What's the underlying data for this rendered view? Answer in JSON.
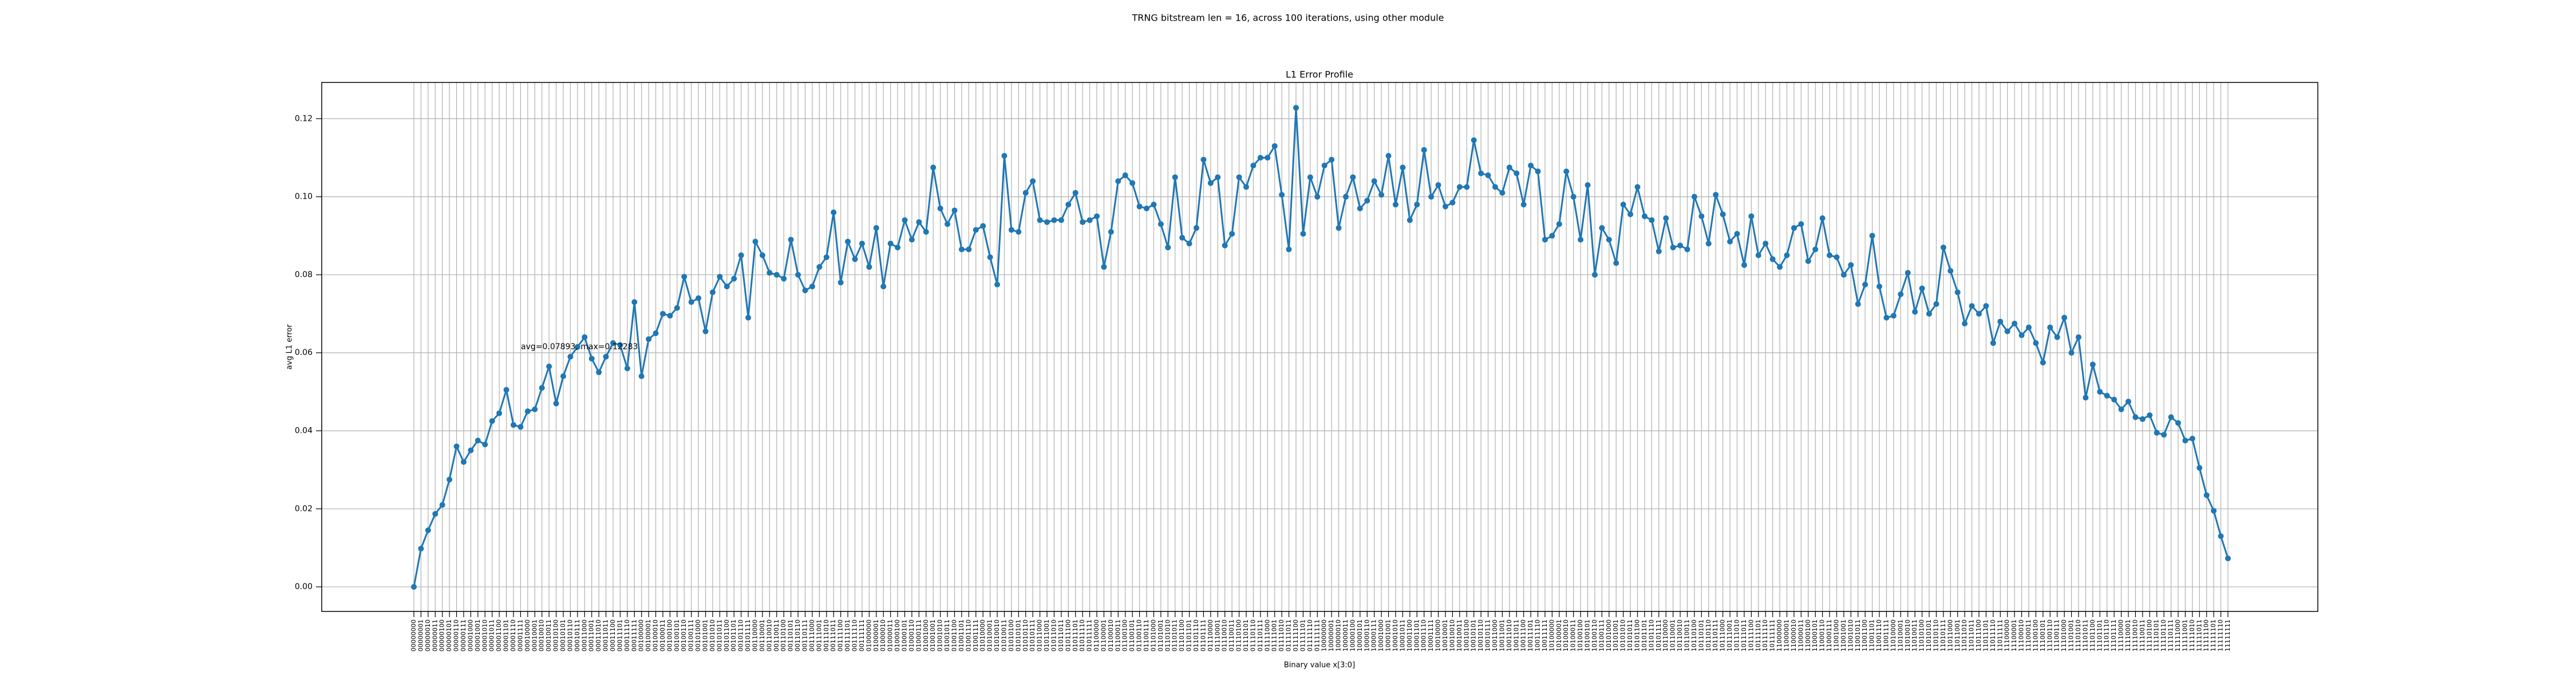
{
  "chart_data": {
    "type": "line",
    "title": "TRNG bitstream len = 16, across 100 iterations, using other module",
    "subtitle": "L1 Error Profile",
    "xlabel": "Binary value x[3:0]",
    "ylabel": "avg L1 error",
    "annotation": "avg=0.07893, max=0.12283",
    "color": "#1f77b4",
    "grid": true,
    "ylim": [
      -0.0063,
      0.1293
    ],
    "yticks": [
      {
        "value": 0,
        "label": "0.00"
      },
      {
        "value": 0.02,
        "label": "0.02"
      },
      {
        "value": 0.04,
        "label": "0.04"
      },
      {
        "value": 0.06,
        "label": "0.06"
      },
      {
        "value": 0.08,
        "label": "0.08"
      },
      {
        "value": 0.1,
        "label": "0.10"
      },
      {
        "value": 0.12,
        "label": "0.12"
      }
    ],
    "categories": [
      "00000000",
      "00000001",
      "00000010",
      "00000011",
      "00000100",
      "00000101",
      "00000110",
      "00000111",
      "00001000",
      "00001001",
      "00001010",
      "00001011",
      "00001100",
      "00001101",
      "00001110",
      "00001111",
      "00010000",
      "00010001",
      "00010010",
      "00010011",
      "00010100",
      "00010101",
      "00010110",
      "00010111",
      "00011000",
      "00011001",
      "00011010",
      "00011011",
      "00011100",
      "00011101",
      "00011110",
      "00011111",
      "00100000",
      "00100001",
      "00100010",
      "00100011",
      "00100100",
      "00100101",
      "00100110",
      "00100111",
      "00101000",
      "00101001",
      "00101010",
      "00101011",
      "00101100",
      "00101101",
      "00101110",
      "00101111",
      "00110000",
      "00110001",
      "00110010",
      "00110011",
      "00110100",
      "00110101",
      "00110110",
      "00110111",
      "00111000",
      "00111001",
      "00111010",
      "00111011",
      "00111100",
      "00111101",
      "00111110",
      "00111111",
      "01000000",
      "01000001",
      "01000010",
      "01000011",
      "01000100",
      "01000101",
      "01000110",
      "01000111",
      "01001000",
      "01001001",
      "01001010",
      "01001011",
      "01001100",
      "01001101",
      "01001110",
      "01001111",
      "01010000",
      "01010001",
      "01010010",
      "01010011",
      "01010100",
      "01010101",
      "01010110",
      "01010111",
      "01011000",
      "01011001",
      "01011010",
      "01011011",
      "01011100",
      "01011101",
      "01011110",
      "01011111",
      "01100000",
      "01100001",
      "01100010",
      "01100011",
      "01100100",
      "01100101",
      "01100110",
      "01100111",
      "01101000",
      "01101001",
      "01101010",
      "01101011",
      "01101100",
      "01101101",
      "01101110",
      "01101111",
      "01110000",
      "01110001",
      "01110010",
      "01110011",
      "01110100",
      "01110101",
      "01110110",
      "01110111",
      "01111000",
      "01111001",
      "01111010",
      "01111011",
      "01111100",
      "01111101",
      "01111110",
      "01111111",
      "10000000",
      "10000001",
      "10000010",
      "10000011",
      "10000100",
      "10000101",
      "10000110",
      "10000111",
      "10001000",
      "10001001",
      "10001010",
      "10001011",
      "10001100",
      "10001101",
      "10001110",
      "10001111",
      "10010000",
      "10010001",
      "10010010",
      "10010011",
      "10010100",
      "10010101",
      "10010110",
      "10010111",
      "10011000",
      "10011001",
      "10011010",
      "10011011",
      "10011100",
      "10011101",
      "10011110",
      "10011111",
      "10100000",
      "10100001",
      "10100010",
      "10100011",
      "10100100",
      "10100101",
      "10100110",
      "10100111",
      "10101000",
      "10101001",
      "10101010",
      "10101011",
      "10101100",
      "10101101",
      "10101110",
      "10101111",
      "10110000",
      "10110001",
      "10110010",
      "10110011",
      "10110100",
      "10110101",
      "10110110",
      "10110111",
      "10111000",
      "10111001",
      "10111010",
      "10111011",
      "10111100",
      "10111101",
      "10111110",
      "10111111",
      "11000000",
      "11000001",
      "11000010",
      "11000011",
      "11000100",
      "11000101",
      "11000110",
      "11000111",
      "11001000",
      "11001001",
      "11001010",
      "11001011",
      "11001100",
      "11001101",
      "11001110",
      "11001111",
      "11010000",
      "11010001",
      "11010010",
      "11010011",
      "11010100",
      "11010101",
      "11010110",
      "11010111",
      "11011000",
      "11011001",
      "11011010",
      "11011011",
      "11011100",
      "11011101",
      "11011110",
      "11011111",
      "11100000",
      "11100001",
      "11100010",
      "11100011",
      "11100100",
      "11100101",
      "11100110",
      "11100111",
      "11101000",
      "11101001",
      "11101010",
      "11101011",
      "11101100",
      "11101101",
      "11101110",
      "11101111",
      "11110000",
      "11110001",
      "11110010",
      "11110011",
      "11110100",
      "11110101",
      "11110110",
      "11110111",
      "11111000",
      "11111001",
      "11111010",
      "11111011",
      "11111100",
      "11111101",
      "11111110",
      "11111111"
    ],
    "values": [
      0.0,
      0.0098,
      0.0145,
      0.0187,
      0.021,
      0.0275,
      0.036,
      0.032,
      0.035,
      0.0375,
      0.0365,
      0.0425,
      0.0445,
      0.0505,
      0.0415,
      0.041,
      0.045,
      0.0455,
      0.051,
      0.0565,
      0.047,
      0.054,
      0.059,
      0.0615,
      0.064,
      0.0585,
      0.055,
      0.059,
      0.0625,
      0.062,
      0.056,
      0.073,
      0.054,
      0.0635,
      0.065,
      0.07,
      0.0695,
      0.0715,
      0.0795,
      0.073,
      0.074,
      0.0655,
      0.0755,
      0.0795,
      0.077,
      0.079,
      0.085,
      0.069,
      0.0885,
      0.085,
      0.0805,
      0.08,
      0.079,
      0.089,
      0.08,
      0.076,
      0.077,
      0.082,
      0.0845,
      0.096,
      0.078,
      0.0885,
      0.084,
      0.088,
      0.082,
      0.092,
      0.077,
      0.088,
      0.087,
      0.094,
      0.089,
      0.0935,
      0.091,
      0.1075,
      0.097,
      0.093,
      0.0965,
      0.0865,
      0.0865,
      0.0915,
      0.0925,
      0.0845,
      0.0775,
      0.1105,
      0.0915,
      0.091,
      0.101,
      0.104,
      0.094,
      0.0935,
      0.094,
      0.094,
      0.098,
      0.101,
      0.0935,
      0.094,
      0.095,
      0.082,
      0.091,
      0.104,
      0.1055,
      0.1035,
      0.0975,
      0.097,
      0.098,
      0.093,
      0.087,
      0.105,
      0.0895,
      0.088,
      0.092,
      0.1095,
      0.1035,
      0.105,
      0.0875,
      0.0905,
      0.105,
      0.1025,
      0.108,
      0.11,
      0.11,
      0.113,
      0.1005,
      0.0865,
      0.1228,
      0.0905,
      0.105,
      0.1,
      0.108,
      0.1095,
      0.092,
      0.1,
      0.105,
      0.097,
      0.099,
      0.104,
      0.1005,
      0.1105,
      0.098,
      0.1075,
      0.094,
      0.098,
      0.112,
      0.1,
      0.103,
      0.0975,
      0.0985,
      0.1025,
      0.1025,
      0.1145,
      0.106,
      0.1055,
      0.1025,
      0.101,
      0.1075,
      0.106,
      0.098,
      0.108,
      0.1065,
      0.089,
      0.09,
      0.093,
      0.1065,
      0.1,
      0.089,
      0.103,
      0.08,
      0.092,
      0.089,
      0.083,
      0.098,
      0.0955,
      0.1025,
      0.095,
      0.094,
      0.086,
      0.0945,
      0.087,
      0.0875,
      0.0865,
      0.1,
      0.095,
      0.088,
      0.1005,
      0.0955,
      0.0885,
      0.0905,
      0.0825,
      0.095,
      0.085,
      0.088,
      0.084,
      0.082,
      0.085,
      0.092,
      0.093,
      0.0835,
      0.0865,
      0.0945,
      0.085,
      0.0845,
      0.08,
      0.0825,
      0.0725,
      0.0775,
      0.09,
      0.077,
      0.069,
      0.0695,
      0.075,
      0.0805,
      0.0705,
      0.0765,
      0.07,
      0.0725,
      0.087,
      0.081,
      0.0755,
      0.0675,
      0.072,
      0.07,
      0.072,
      0.0625,
      0.068,
      0.0655,
      0.0675,
      0.0645,
      0.0665,
      0.0625,
      0.0575,
      0.0665,
      0.064,
      0.069,
      0.06,
      0.064,
      0.0485,
      0.057,
      0.05,
      0.049,
      0.048,
      0.0455,
      0.0475,
      0.0435,
      0.043,
      0.044,
      0.0395,
      0.039,
      0.0435,
      0.042,
      0.0375,
      0.038,
      0.0305,
      0.0235,
      0.0195,
      0.013,
      0.0073
    ]
  }
}
